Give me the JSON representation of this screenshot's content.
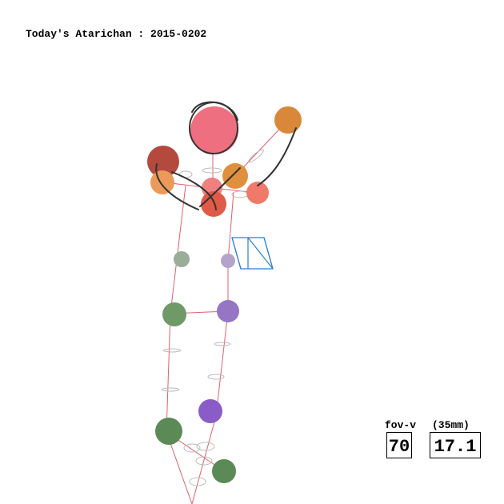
{
  "header": {
    "title": "Today's Atarichan : 2015-0202"
  },
  "fov": {
    "label": "fov-v",
    "unit_label": "(35mm)",
    "value": 70,
    "focal": 17.1
  }
}
